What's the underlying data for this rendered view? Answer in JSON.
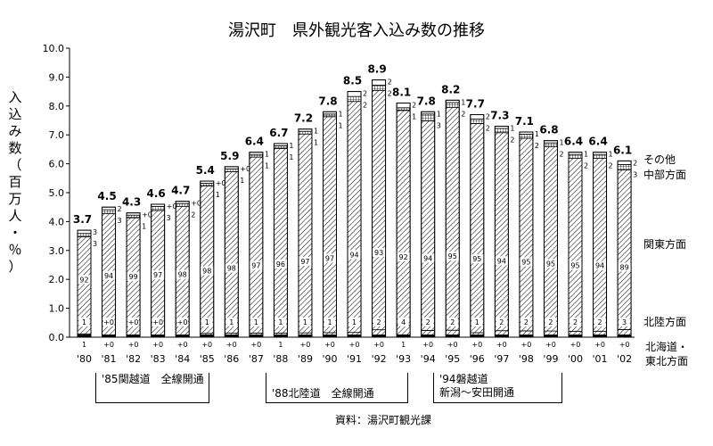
{
  "chart_data": {
    "type": "bar",
    "title": "湯沢町　県外観光客入込み数の推移",
    "ylabel": "入込み数（百万人・％）",
    "ylim": [
      0,
      10
    ],
    "yticks": [
      "0.0",
      "1.0",
      "2.0",
      "3.0",
      "4.0",
      "5.0",
      "6.0",
      "7.0",
      "8.0",
      "9.0",
      "10.0"
    ],
    "categories": [
      "'80",
      "'81",
      "'82",
      "'83",
      "'84",
      "'85",
      "'86",
      "'87",
      "'88",
      "'89",
      "'90",
      "'91",
      "'92",
      "'93",
      "'94",
      "'95",
      "'96",
      "'97",
      "'98",
      "'99",
      "'00",
      "'01",
      "'02"
    ],
    "totals": [
      3.7,
      4.5,
      4.3,
      4.6,
      4.7,
      5.4,
      5.9,
      6.4,
      6.7,
      7.2,
      7.8,
      8.5,
      8.9,
      8.1,
      7.8,
      8.2,
      7.7,
      7.3,
      7.1,
      6.8,
      6.4,
      6.4,
      6.1
    ],
    "total_labels": [
      "3.7",
      "4.5",
      "4.3",
      "4.6",
      "4.7",
      "5.4",
      "5.9",
      "6.4",
      "6.7",
      "7.2",
      "7.8",
      "8.5",
      "8.9",
      "8.1",
      "7.8",
      "8.2",
      "7.7",
      "7.3",
      "7.1",
      "6.8",
      "6.4",
      "6.4",
      "6.1"
    ],
    "series": [
      {
        "name": "北海道・東北方面",
        "pct_labels": [
          "1",
          "+0",
          "+0",
          "+0",
          "+0",
          "+0",
          "+0",
          "+0",
          "1",
          "+0",
          "+0",
          "+0",
          "+0",
          "1",
          "+0",
          "+0",
          "+0",
          "+0",
          "+0",
          "+0",
          "+0",
          "+0",
          "+0"
        ],
        "values": [
          1,
          0,
          0,
          0,
          0,
          0,
          0,
          0,
          1,
          0,
          0,
          0,
          0,
          1,
          0,
          0,
          0,
          0,
          0,
          0,
          0,
          0,
          0
        ]
      },
      {
        "name": "北陸方面",
        "pct_labels": [
          "1",
          "+0",
          "+0",
          "+0",
          "+0",
          "1",
          "1",
          "1",
          "1",
          "1",
          "1",
          "1",
          "2",
          "4",
          "2",
          "2",
          "1",
          "2",
          "2",
          "2",
          "2",
          "2",
          "3"
        ],
        "values": [
          1,
          0,
          0,
          0,
          0,
          1,
          1,
          1,
          1,
          1,
          1,
          1,
          2,
          4,
          2,
          2,
          1,
          2,
          2,
          2,
          2,
          2,
          3
        ]
      },
      {
        "name": "関東方面",
        "pct_labels": [
          "92",
          "94",
          "99",
          "97",
          "98",
          "98",
          "98",
          "97",
          "96",
          "97",
          "97",
          "94",
          "93",
          "92",
          "94",
          "95",
          "95",
          "94",
          "95",
          "95",
          "95",
          "94",
          "89"
        ],
        "values": [
          92,
          94,
          99,
          97,
          98,
          98,
          98,
          97,
          96,
          97,
          97,
          94,
          93,
          92,
          94,
          95,
          95,
          94,
          95,
          95,
          95,
          94,
          89
        ]
      },
      {
        "name": "中部方面",
        "pct_labels": [
          "3",
          "3",
          "1",
          "3",
          "2",
          "1",
          "1",
          "1",
          "1",
          "1",
          "1",
          "2",
          "2",
          "1",
          "3",
          "2",
          "2",
          "2",
          "2",
          "2",
          "2",
          "2",
          "3"
        ],
        "values": [
          3,
          3,
          1,
          3,
          2,
          1,
          1,
          1,
          1,
          1,
          1,
          2,
          2,
          1,
          3,
          2,
          2,
          2,
          2,
          2,
          2,
          2,
          3
        ]
      },
      {
        "name": "その他",
        "pct_labels": [
          "3",
          "2",
          "+0",
          "+0",
          "+0",
          "+0",
          "+0",
          "1",
          "1",
          "1",
          "1",
          "2",
          "2",
          "2",
          "1",
          "1",
          "2",
          "1",
          "1",
          "1",
          "1",
          "1",
          "2"
        ],
        "values": [
          3,
          2,
          0,
          0,
          0,
          0,
          0,
          1,
          1,
          1,
          1,
          2,
          2,
          2,
          1,
          1,
          2,
          1,
          1,
          1,
          1,
          1,
          2
        ]
      }
    ],
    "legend": [
      "その他",
      "中部方面",
      "関東方面",
      "北陸方面",
      "北海道・東北方面"
    ],
    "legend_position": "right",
    "grid": false
  },
  "annotations": [
    {
      "lines": [
        "'85関越道　全線開通"
      ]
    },
    {
      "lines": [
        "'88北陸道　全線開通"
      ]
    },
    {
      "lines": [
        "'94磐越道",
        "新潟～安田開通"
      ]
    }
  ],
  "source": "資料：湯沢町観光課",
  "legend_labels": {
    "other": "その他",
    "chubu": "中部方面",
    "kanto": "関東方面",
    "hokuriku": "北陸方面",
    "hokkaido_line1": "北海道・",
    "hokkaido_line2": "東北方面"
  },
  "colors": {
    "bar_outline": "#000000",
    "hatch": "#000000",
    "background": "#ffffff"
  }
}
